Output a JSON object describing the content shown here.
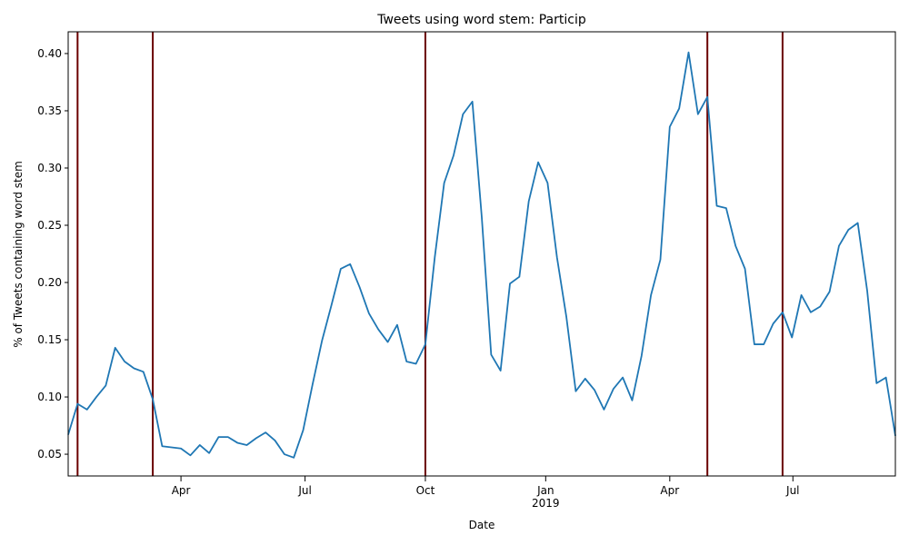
{
  "chart_data": {
    "type": "line",
    "title": "Tweets using word stem: Particip",
    "xlabel": "Date",
    "ylabel": "% of Tweets containing word stem",
    "categories": [
      null,
      null,
      null,
      null,
      null,
      null,
      null,
      null,
      null,
      null,
      null,
      null,
      null,
      null,
      null,
      null,
      null,
      null,
      null,
      null,
      null,
      null,
      null,
      null,
      null,
      null,
      null,
      null,
      null,
      null,
      null,
      null,
      null,
      null,
      null,
      null,
      null,
      null,
      null,
      null,
      null,
      null,
      null,
      null,
      null,
      null,
      null,
      null,
      null,
      null,
      null,
      null,
      null,
      null,
      null,
      null,
      null,
      null,
      null,
      null,
      null,
      null,
      null,
      null,
      null,
      null,
      null,
      null,
      null,
      null,
      null,
      null,
      null,
      null,
      null,
      null,
      null,
      null,
      null,
      null,
      null,
      null,
      null,
      null,
      null,
      null,
      null,
      null,
      null
    ],
    "series": [
      {
        "color": "#1f77b4",
        "values": [
          0.067,
          0.094,
          0.089,
          0.1,
          0.11,
          0.143,
          0.131,
          0.125,
          0.122,
          0.098,
          0.057,
          0.056,
          0.055,
          0.049,
          0.058,
          0.051,
          0.065,
          0.065,
          0.06,
          0.058,
          0.064,
          0.069,
          0.062,
          0.05,
          0.047,
          0.071,
          0.111,
          0.149,
          0.18,
          0.212,
          0.216,
          0.196,
          0.173,
          0.159,
          0.148,
          0.163,
          0.131,
          0.129,
          0.146,
          0.222,
          0.287,
          0.311,
          0.347,
          0.358,
          0.257,
          0.137,
          0.123,
          0.199,
          0.205,
          0.271,
          0.305,
          0.287,
          0.222,
          0.17,
          0.105,
          0.116,
          0.106,
          0.089,
          0.107,
          0.117,
          0.097,
          0.136,
          0.189,
          0.22,
          0.336,
          0.352,
          0.401,
          0.347,
          0.362,
          0.267,
          0.265,
          0.232,
          0.212,
          0.146,
          0.146,
          0.164,
          0.174,
          0.152,
          0.189,
          0.174,
          0.179,
          0.192,
          0.232,
          0.246,
          0.252,
          0.193,
          0.112,
          0.117,
          0.066
        ]
      }
    ],
    "xlim": [
      0,
      88
    ],
    "xticks": [
      {
        "value": 12,
        "label": "Apr"
      },
      {
        "value": 25.2,
        "label": "Jul"
      },
      {
        "value": 38,
        "label": "Oct"
      },
      {
        "value": 50.8,
        "label": "Jan\n2019"
      },
      {
        "value": 64,
        "label": "Apr"
      },
      {
        "value": 77.1,
        "label": "Jul"
      }
    ],
    "ylim": [
      0.031,
      0.419
    ],
    "yticks": [
      0.05,
      {
        "value": 0.1,
        "label": "0.10"
      },
      0.15,
      {
        "value": 0.2,
        "label": "0.20"
      },
      0.25,
      {
        "value": 0.3,
        "label": "0.30"
      },
      0.35,
      {
        "value": 0.4,
        "label": "0.40"
      }
    ],
    "vlines": [
      1,
      9,
      38,
      68,
      76
    ],
    "vline_color": "#6b0000"
  }
}
